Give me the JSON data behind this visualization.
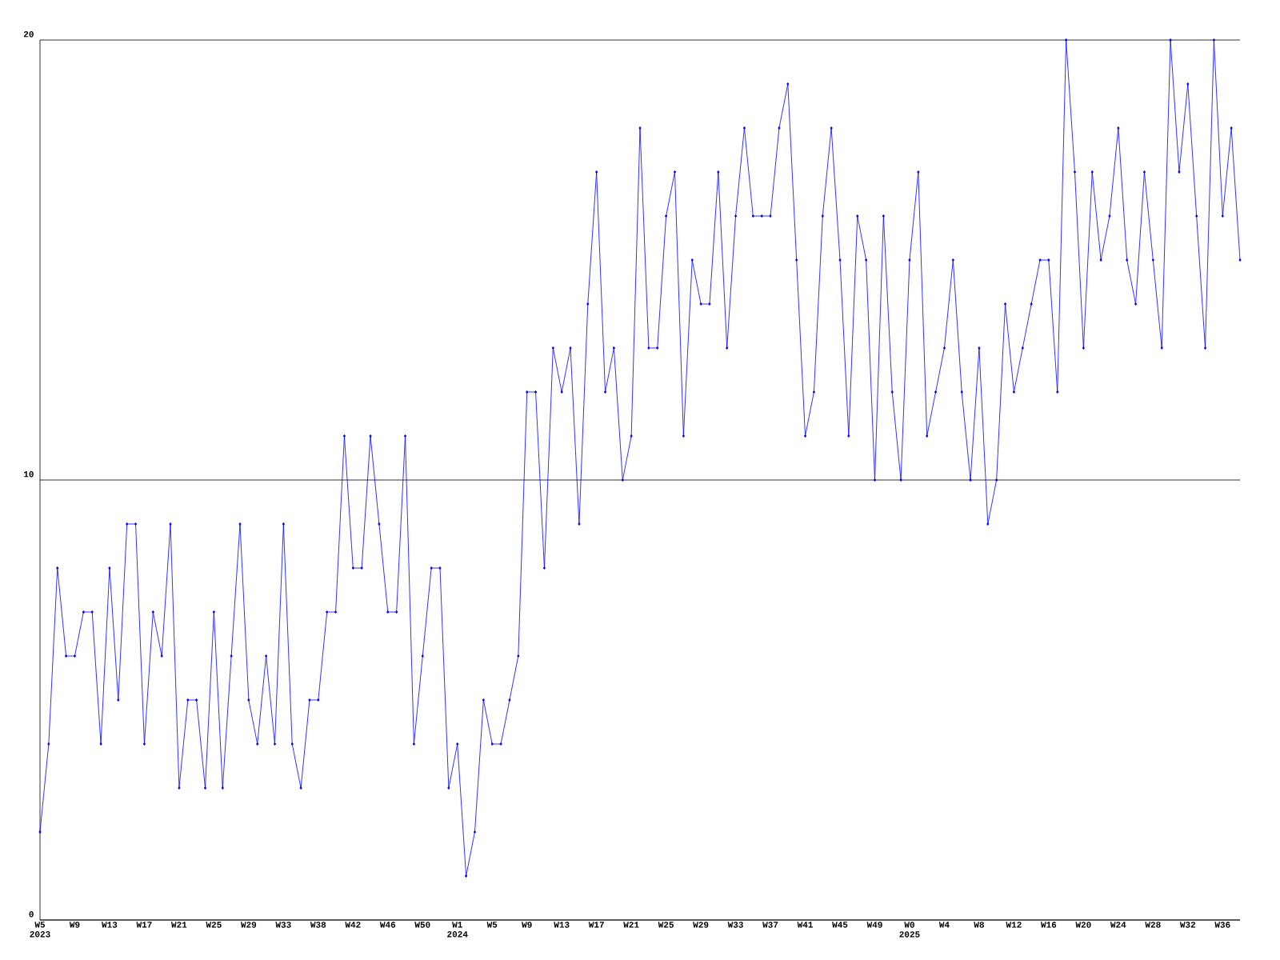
{
  "chart_data": {
    "type": "line",
    "categories": [
      "W5 2023",
      null,
      null,
      null,
      "W9",
      null,
      null,
      null,
      "W13",
      null,
      null,
      null,
      "W17",
      null,
      null,
      null,
      "W21",
      null,
      null,
      null,
      "W25",
      null,
      null,
      null,
      "W29",
      null,
      null,
      null,
      "W33",
      null,
      null,
      null,
      "W38",
      null,
      null,
      null,
      "W42",
      null,
      null,
      null,
      "W46",
      null,
      null,
      null,
      "W50",
      null,
      null,
      null,
      "W1 2024",
      null,
      null,
      null,
      "W5",
      null,
      null,
      null,
      "W9",
      null,
      null,
      null,
      "W13",
      null,
      null,
      null,
      "W17",
      null,
      null,
      null,
      "W21",
      null,
      null,
      null,
      "W25",
      null,
      null,
      null,
      "W29",
      null,
      null,
      null,
      "W33",
      null,
      null,
      null,
      "W37",
      null,
      null,
      null,
      "W41",
      null,
      null,
      null,
      "W45",
      null,
      null,
      null,
      "W49",
      null,
      null,
      null,
      "W0 2025",
      null,
      null,
      null,
      "W4",
      null,
      null,
      null,
      "W8",
      null,
      null,
      null,
      "W12",
      null,
      null,
      null,
      "W16",
      null,
      null,
      null,
      "W20",
      null,
      null,
      null,
      "W24",
      null,
      null,
      null,
      "W28",
      null,
      null,
      null,
      "W32",
      null,
      null,
      null,
      "W36",
      null,
      null
    ],
    "series": [
      {
        "color": "#0000ff",
        "values": [
          2,
          4,
          8,
          6,
          6,
          7,
          7,
          4,
          8,
          5,
          9,
          9,
          4,
          7,
          6,
          9,
          3,
          5,
          5,
          3,
          7,
          3,
          6,
          9,
          5,
          4,
          6,
          4,
          9,
          4,
          3,
          5,
          5,
          7,
          7,
          11,
          8,
          8,
          11,
          9,
          7,
          7,
          11,
          4,
          6,
          8,
          8,
          3,
          4,
          1,
          2,
          5,
          4,
          4,
          5,
          6,
          12,
          12,
          8,
          13,
          12,
          13,
          9,
          14,
          17,
          12,
          13,
          10,
          11,
          18,
          13,
          13,
          16,
          17,
          11,
          15,
          14,
          14,
          17,
          13,
          16,
          18,
          16,
          16,
          16,
          18,
          19,
          15,
          11,
          12,
          16,
          18,
          15,
          11,
          16,
          15,
          10,
          16,
          12,
          10,
          15,
          17,
          11,
          12,
          13,
          15,
          12,
          10,
          13,
          9,
          10,
          14,
          12,
          13,
          14,
          15,
          15,
          12,
          20,
          17,
          13,
          17,
          15,
          16,
          18,
          15,
          14,
          17,
          15,
          13,
          20,
          17,
          19,
          16,
          13,
          20,
          16,
          18,
          15
        ]
      }
    ],
    "ylim": [
      0,
      20
    ],
    "yticks": [
      0,
      10,
      20
    ],
    "grid": "y",
    "marker": "diamond",
    "line_style": "solid"
  }
}
